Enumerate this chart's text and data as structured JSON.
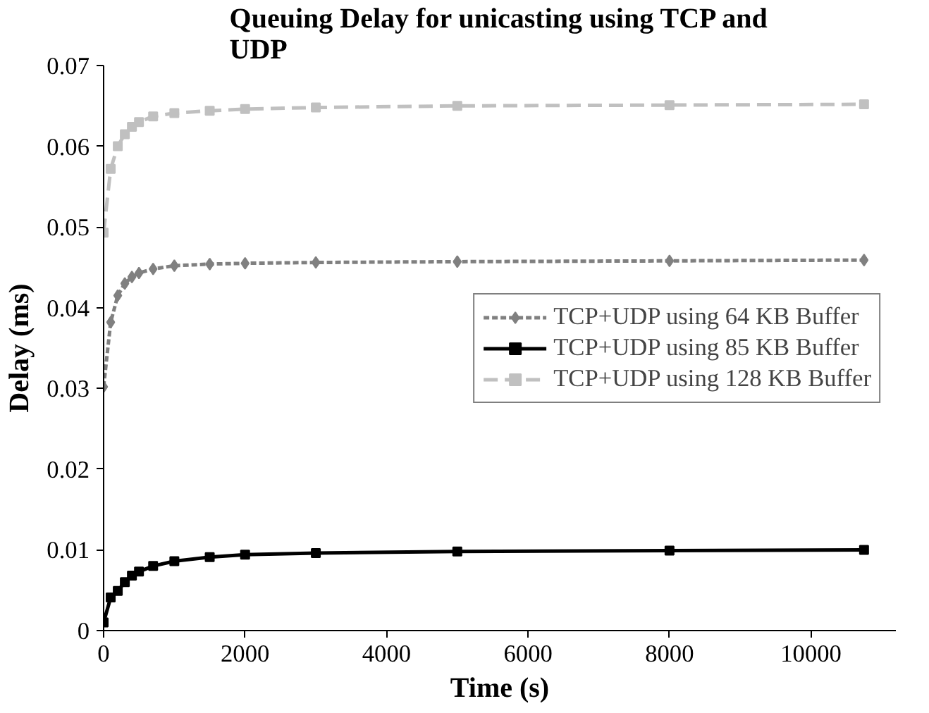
{
  "chart_data": {
    "type": "line",
    "title": "Queuing Delay for unicasting using TCP and UDP",
    "xlabel": "Time (s)",
    "ylabel": "Delay (ms)",
    "xlim": [
      0,
      11200
    ],
    "xticks": [
      0,
      2000,
      4000,
      6000,
      8000,
      10000
    ],
    "ylim": [
      0,
      0.07
    ],
    "yticks": [
      0,
      0.01,
      0.02,
      0.03,
      0.04,
      0.05,
      0.06,
      0.07
    ],
    "grid": false,
    "legend": "right",
    "x": [
      0,
      100,
      200,
      300,
      400,
      500,
      700,
      1000,
      1500,
      2000,
      3000,
      5000,
      8000,
      10750
    ],
    "series": [
      {
        "name": "TCP+UDP using 64 KB Buffer",
        "color": "#808080",
        "marker": "diamond",
        "line_style": "dashed",
        "values": [
          0.0302,
          0.0382,
          0.0415,
          0.043,
          0.0438,
          0.0443,
          0.0448,
          0.0452,
          0.0454,
          0.0455,
          0.0456,
          0.0457,
          0.0458,
          0.0459
        ]
      },
      {
        "name": "TCP+UDP using 85 KB Buffer",
        "color": "#000000",
        "marker": "square",
        "line_style": "solid",
        "values": [
          0.001,
          0.0041,
          0.0049,
          0.006,
          0.0068,
          0.0073,
          0.008,
          0.0086,
          0.0091,
          0.0094,
          0.0096,
          0.0098,
          0.0099,
          0.01
        ]
      },
      {
        "name": "TCP+UDP using 128 KB Buffer",
        "color": "#c0c0c0",
        "marker": "square",
        "line_style": "dashed",
        "values": [
          0.0493,
          0.0572,
          0.06,
          0.0615,
          0.0624,
          0.063,
          0.0637,
          0.0641,
          0.0644,
          0.0646,
          0.0648,
          0.065,
          0.0651,
          0.0652
        ]
      }
    ]
  }
}
